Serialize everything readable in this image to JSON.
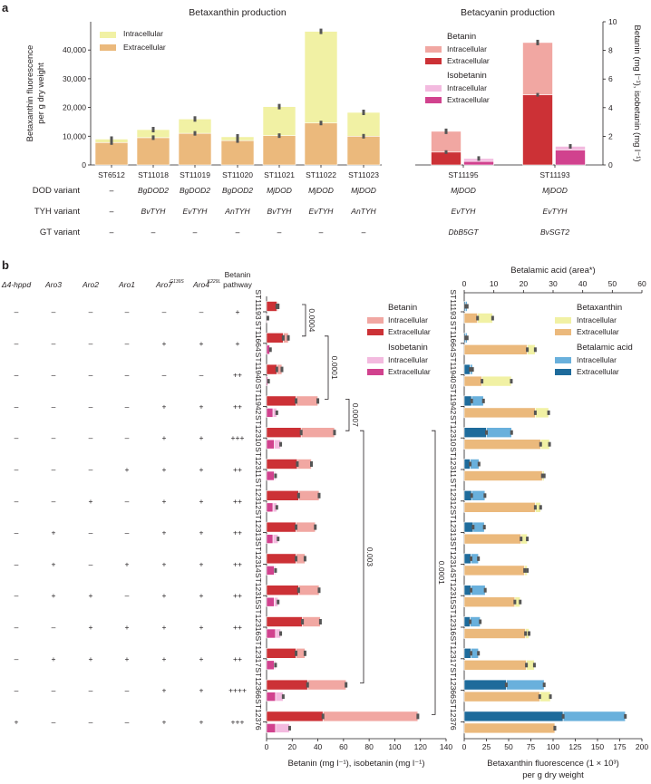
{
  "panel_labels": [
    "a",
    "b"
  ],
  "colors": {
    "betaxanthin_intra": "#f1f1a4",
    "betaxanthin_extra": "#ebb97c",
    "betanin_intra": "#f1a7a2",
    "betanin_extra": "#cc3136",
    "isobetanin_intra": "#f3badf",
    "isobetanin_extra": "#d1428e",
    "betalamic_intra": "#69b0dc",
    "betalamic_extra": "#1e6b9b",
    "errorbar": "#555555"
  },
  "chart_data": [
    {
      "type": "bar",
      "stacked": true,
      "title": "Betaxanthin production",
      "ylabel_lines": [
        "Betaxanthin fluorescence",
        "per g dry weight"
      ],
      "ylim": [
        0,
        50000
      ],
      "yticks": [
        0,
        10000,
        20000,
        30000,
        40000
      ],
      "ytick_labels": [
        "0",
        "10,000",
        "20,000",
        "30,000",
        "40,000"
      ],
      "categories": [
        "ST6512",
        "ST11018",
        "ST11019",
        "ST11020",
        "ST11021",
        "ST11022",
        "ST11023"
      ],
      "series": [
        {
          "name": "Extracellular",
          "values": [
            7800,
            9500,
            11000,
            8500,
            10200,
            14600,
            10000
          ]
        },
        {
          "name": "Intracellular",
          "values": [
            1200,
            2800,
            5000,
            1300,
            10100,
            31900,
            8300
          ]
        }
      ],
      "legend": [
        "Intracellular",
        "Extracellular"
      ],
      "legend_position": "top-left",
      "variant_rows": [
        {
          "label": "DOD variant",
          "values": [
            "–",
            "BgDOD2",
            "BgDOD2",
            "BgDOD2",
            "MjDOD",
            "MjDOD",
            "MjDOD"
          ]
        },
        {
          "label": "TYH variant",
          "values": [
            "–",
            "BvTYH",
            "EvTYH",
            "AnTYH",
            "BvTYH",
            "EvTYH",
            "AnTYH"
          ]
        },
        {
          "label": "GT variant",
          "values": [
            "–",
            "–",
            "–",
            "–",
            "–",
            "–",
            "–"
          ]
        }
      ]
    },
    {
      "type": "bar",
      "stacked": true,
      "title": "Betacyanin production",
      "ylabel": "Betanin (mg l⁻¹), isobetanin (mg l⁻¹)",
      "ylim": [
        0,
        10
      ],
      "yticks": [
        0,
        2,
        4,
        6,
        8,
        10
      ],
      "ytick_labels": [
        "0",
        "2",
        "4",
        "6",
        "8",
        "10"
      ],
      "categories": [
        "ST11195",
        "ST11193"
      ],
      "series": [
        {
          "name": "Betanin Extracellular",
          "values": [
            0.9,
            4.9
          ]
        },
        {
          "name": "Betanin Intracellular",
          "values": [
            1.45,
            3.65
          ]
        },
        {
          "name": "Isobetanin Extracellular",
          "values": [
            0.25,
            1.05
          ]
        },
        {
          "name": "Isobetanin Intracellular",
          "values": [
            0.2,
            0.25
          ]
        }
      ],
      "legend_groups": [
        {
          "title": "Betanin",
          "items": [
            "Intracellular",
            "Extracellular"
          ]
        },
        {
          "title": "Isobetanin",
          "items": [
            "Intracellular",
            "Extracellular"
          ]
        }
      ],
      "variant_rows": [
        {
          "values": [
            "MjDOD",
            "MjDOD"
          ]
        },
        {
          "values": [
            "EvTYH",
            "EvTYH"
          ]
        },
        {
          "values": [
            "DbB5GT",
            "BvSGT2"
          ]
        }
      ]
    },
    {
      "type": "bar",
      "orientation": "horizontal",
      "stacked": true,
      "xlabel": "Betanin (mg l⁻¹), isobetanin (mg l⁻¹)",
      "xlim": [
        0,
        140
      ],
      "xticks": [
        0,
        20,
        40,
        60,
        80,
        100,
        120,
        140
      ],
      "xtick_labels": [
        "0",
        "20",
        "40",
        "60",
        "80",
        "100",
        "120",
        "140"
      ],
      "categories": [
        "ST11193",
        "ST11664",
        "ST11940",
        "ST11942",
        "ST12310",
        "ST12311",
        "ST12312",
        "ST12313",
        "ST12314",
        "ST12315",
        "ST12316",
        "ST12317",
        "ST12366",
        "ST12376"
      ],
      "series": [
        {
          "name": "Betanin Extracellular",
          "values": [
            8,
            13,
            8,
            23,
            27,
            24,
            25,
            23,
            23,
            25,
            28,
            23,
            32,
            44
          ]
        },
        {
          "name": "Betanin Intracellular",
          "values": [
            1,
            4,
            4,
            17,
            26,
            11,
            16,
            15,
            7,
            16,
            14,
            7,
            30,
            74
          ]
        },
        {
          "name": "Isobetanin Extracellular",
          "values": [
            0.5,
            2.5,
            1,
            5,
            6,
            6,
            5,
            5,
            6,
            6,
            7,
            6,
            7,
            7
          ]
        },
        {
          "name": "Isobetanin Intracellular",
          "values": [
            0.5,
            0.5,
            0.5,
            3,
            5,
            1,
            3,
            4,
            1,
            3,
            4,
            1,
            6,
            11
          ]
        }
      ],
      "legend_groups": [
        {
          "title": "Betanin",
          "items": [
            "Intracellular",
            "Extracellular"
          ]
        },
        {
          "title": "Isobetanin",
          "items": [
            "Intracellular",
            "Extracellular"
          ]
        }
      ],
      "significance": [
        {
          "from": 0,
          "to": 1,
          "p": "0.0004"
        },
        {
          "from": 1,
          "to": 3,
          "p": "0.0001"
        },
        {
          "from": 3,
          "to": 4,
          "p": "0.0007"
        },
        {
          "from": 4,
          "to": 12,
          "p": "0.003"
        },
        {
          "from": 4,
          "to": 13,
          "p": "0.0001"
        }
      ],
      "genotype_table": {
        "columns": [
          {
            "name": "Δ4-hppd",
            "sup": ""
          },
          {
            "name": "Aro3",
            "sup": ""
          },
          {
            "name": "Aro2",
            "sup": ""
          },
          {
            "name": "Aro1",
            "sup": ""
          },
          {
            "name": "Aro7",
            "sup": "G139S"
          },
          {
            "name": "Aro4",
            "sup": "K229L"
          }
        ],
        "pathway_header": [
          "Betanin",
          "pathway"
        ],
        "rows": [
          [
            "–",
            "–",
            "–",
            "–",
            "–",
            "–",
            "+"
          ],
          [
            "–",
            "–",
            "–",
            "–",
            "+",
            "+",
            "+"
          ],
          [
            "–",
            "–",
            "–",
            "–",
            "–",
            "–",
            "++"
          ],
          [
            "–",
            "–",
            "–",
            "–",
            "+",
            "+",
            "++"
          ],
          [
            "–",
            "–",
            "–",
            "–",
            "+",
            "+",
            "+++"
          ],
          [
            "–",
            "–",
            "–",
            "+",
            "+",
            "+",
            "++"
          ],
          [
            "–",
            "–",
            "+",
            "–",
            "+",
            "+",
            "++"
          ],
          [
            "–",
            "+",
            "–",
            "–",
            "+",
            "+",
            "++"
          ],
          [
            "–",
            "+",
            "–",
            "+",
            "+",
            "+",
            "++"
          ],
          [
            "–",
            "+",
            "+",
            "–",
            "+",
            "+",
            "++"
          ],
          [
            "–",
            "–",
            "+",
            "+",
            "+",
            "+",
            "++"
          ],
          [
            "–",
            "+",
            "+",
            "+",
            "+",
            "+",
            "++"
          ],
          [
            "–",
            "–",
            "–",
            "–",
            "+",
            "+",
            "++++"
          ],
          [
            "+",
            "–",
            "–",
            "–",
            "+",
            "+",
            "+++"
          ]
        ]
      }
    },
    {
      "type": "bar",
      "orientation": "horizontal",
      "stacked": true,
      "top_axis_title": "Betalamic acid (area*)",
      "top_xlim": [
        0,
        60
      ],
      "top_xticks": [
        0,
        10,
        20,
        30,
        40,
        50,
        60
      ],
      "top_xtick_labels": [
        "0",
        "10",
        "20",
        "30",
        "40",
        "50",
        "60"
      ],
      "xlabel_lines": [
        "Betaxanthin fluorescence (1 × 10³)",
        "per g dry weight"
      ],
      "xlim": [
        0,
        200
      ],
      "xticks": [
        0,
        25,
        50,
        75,
        100,
        125,
        150,
        175,
        200
      ],
      "xtick_labels": [
        "0",
        "25",
        "50",
        "75",
        "100",
        "125",
        "150",
        "175",
        "200"
      ],
      "categories": [
        "ST11193",
        "ST11664",
        "ST11940",
        "ST11942",
        "ST12310",
        "ST12311",
        "ST12312",
        "ST12313",
        "ST12314",
        "ST12315",
        "ST12316",
        "ST12317",
        "ST12366",
        "ST12376"
      ],
      "series": [
        {
          "name": "Betalamic acid Extracellular",
          "axis": "top",
          "values": [
            0.5,
            0.5,
            2,
            2.5,
            7.5,
            2,
            2.5,
            3,
            2.3,
            2.3,
            2,
            2.3,
            14.2,
            33.4
          ]
        },
        {
          "name": "Betalamic acid Intracellular",
          "axis": "top",
          "values": [
            0.5,
            0.5,
            0.8,
            4,
            8.5,
            3,
            4.5,
            3.8,
            2.5,
            4.8,
            3.4,
            2.5,
            12.8,
            21
          ]
        },
        {
          "name": "Betaxanthin Extracellular",
          "axis": "bottom",
          "values": [
            15,
            71,
            20,
            80,
            86,
            88,
            80,
            64,
            68,
            57,
            69,
            70,
            85,
            102
          ]
        },
        {
          "name": "Betaxanthin Intracellular",
          "axis": "bottom",
          "values": [
            17,
            9,
            33,
            15,
            10,
            2,
            6,
            7,
            3,
            6,
            4,
            9,
            12,
            0
          ]
        }
      ],
      "legend_groups": [
        {
          "title": "Betaxanthin",
          "items": [
            "Intracellular",
            "Extracellular"
          ]
        },
        {
          "title": "Betalamic acid",
          "items": [
            "Intracellular",
            "Extracellular"
          ]
        }
      ]
    }
  ]
}
